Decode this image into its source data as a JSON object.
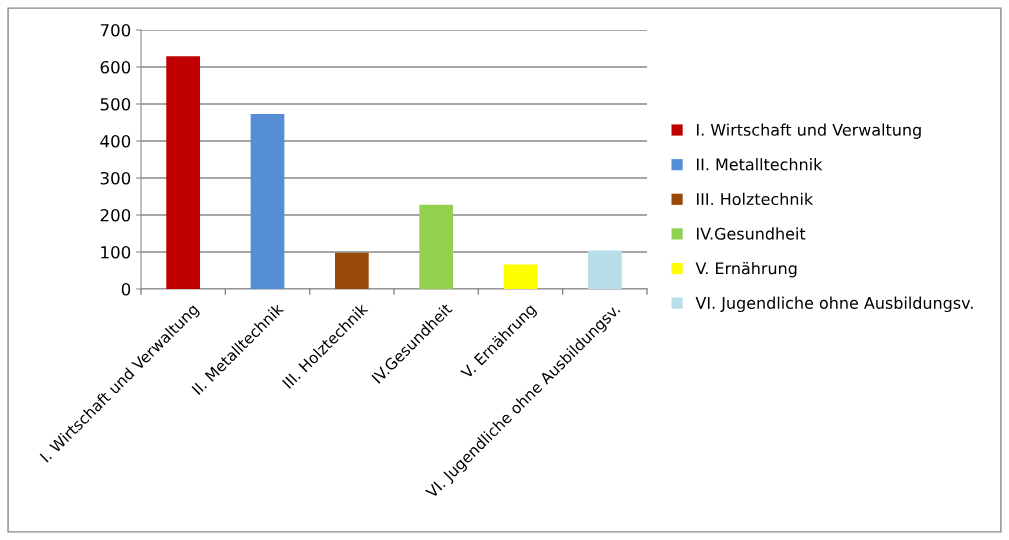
{
  "chart_data": {
    "type": "bar",
    "categories": [
      null,
      null,
      null,
      null,
      null,
      null
    ],
    "series": [
      {
        "name": "I. Wirtschaft und Verwaltung",
        "color": "#c00000",
        "values": [
          629,
          null,
          null,
          null,
          null,
          null
        ]
      },
      {
        "name": "II. Metalltechnik",
        "color": "#558ed5",
        "values": [
          null,
          473,
          null,
          null,
          null,
          null
        ]
      },
      {
        "name": "III. Holztechnik",
        "color": "#984807",
        "values": [
          null,
          null,
          98,
          null,
          null,
          null
        ]
      },
      {
        "name": "IV.Gesundheit",
        "color": "#92d050",
        "values": [
          null,
          null,
          null,
          228,
          null,
          null
        ]
      },
      {
        "name": "V. Ernährung",
        "color": "#ffff00",
        "values": [
          null,
          null,
          null,
          null,
          66,
          null
        ]
      },
      {
        "name": "VI. Jugendliche ohne Ausbildungsv.",
        "color": "#b7dee8",
        "values": [
          null,
          null,
          null,
          null,
          null,
          104
        ]
      }
    ],
    "ylim": [
      0,
      700
    ],
    "yticks": [
      0,
      100,
      200,
      300,
      400,
      500,
      600,
      700
    ],
    "grid": "y",
    "legend": "right"
  }
}
